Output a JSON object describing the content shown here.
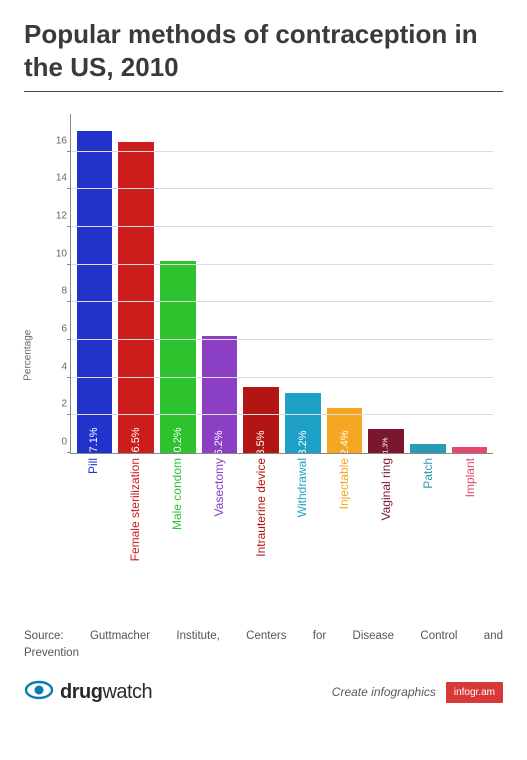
{
  "title": "Popular methods of contraception in the US, 2010",
  "chart": {
    "type": "bar",
    "ylabel": "Percentage",
    "ymax": 18,
    "yticks": [
      0,
      2,
      4,
      6,
      8,
      10,
      12,
      14,
      16
    ],
    "gridline_color": "#dcdcdc",
    "axis_color": "#888888",
    "tick_fontsize": 10,
    "label_fontsize": 12,
    "bar_value_color": "#ffffff",
    "background_color": "#ffffff",
    "bars": [
      {
        "label": "Pill",
        "value": 17.1,
        "value_text": "17.1%",
        "color": "#2233cc"
      },
      {
        "label": "Female sterilization",
        "value": 16.5,
        "value_text": "16.5%",
        "color": "#cc1d1d"
      },
      {
        "label": "Male condom",
        "value": 10.2,
        "value_text": "10.2%",
        "color": "#2fc22f"
      },
      {
        "label": "Vasectomy",
        "value": 6.2,
        "value_text": "6.2%",
        "color": "#8a3fc4"
      },
      {
        "label": "Intrauterine device",
        "value": 3.5,
        "value_text": "3.5%",
        "color": "#b31515"
      },
      {
        "label": "Withdrawal",
        "value": 3.2,
        "value_text": "3.2%",
        "color": "#1fa0c6"
      },
      {
        "label": "Injectable",
        "value": 2.4,
        "value_text": "2.4%",
        "color": "#f5a623"
      },
      {
        "label": "Vaginal ring",
        "value": 1.3,
        "value_text": "1.3%",
        "color": "#7a1630",
        "tiny": true
      },
      {
        "label": "Patch",
        "value": 0.5,
        "value_text": "",
        "color": "#2a9bb5"
      },
      {
        "label": "Implant",
        "value": 0.3,
        "value_text": "",
        "color": "#e24a6b"
      }
    ]
  },
  "source_line1": "Source: Guttmacher Institute, Centers for Disease Control and",
  "source_line2": "Prevention",
  "brand_bold": "drug",
  "brand_rest": "watch",
  "brand_icon_color": "#0a7bb0",
  "create_label": "Create infographics",
  "infogram_label": "infogr.am",
  "infogram_bg": "#d73939"
}
